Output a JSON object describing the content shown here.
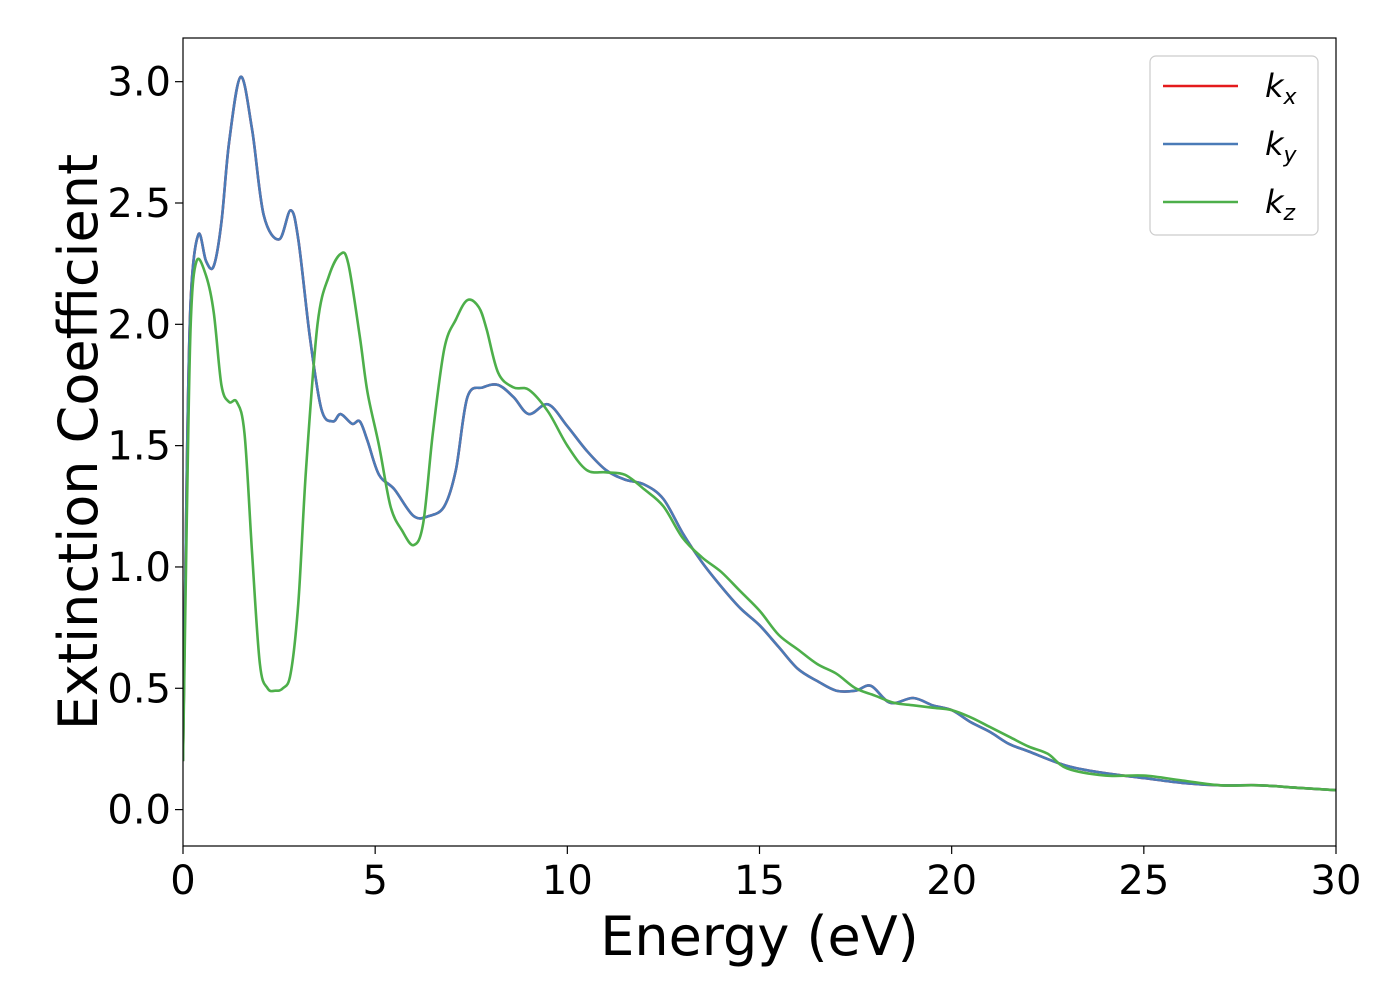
{
  "chart_data": {
    "type": "line",
    "title": "",
    "xlabel": "Energy (eV)",
    "ylabel": "Extinction Coefficient",
    "xlim": [
      0,
      30
    ],
    "ylim": [
      -0.15,
      3.18
    ],
    "xticks": [
      0,
      5,
      10,
      15,
      20,
      25,
      30
    ],
    "xtick_labels": [
      "0",
      "5",
      "10",
      "15",
      "20",
      "25",
      "30"
    ],
    "yticks": [
      0.0,
      0.5,
      1.0,
      1.5,
      2.0,
      2.5,
      3.0
    ],
    "ytick_labels": [
      "0.0",
      "0.5",
      "1.0",
      "1.5",
      "2.0",
      "2.5",
      "3.0"
    ],
    "grid": false,
    "legend_position": "top-right",
    "series": [
      {
        "name": "k",
        "subscript": "x",
        "color": "#e41a1c",
        "x": [
          0,
          0.1,
          0.2,
          0.4,
          0.6,
          0.8,
          1.0,
          1.2,
          1.5,
          1.8,
          2.1,
          2.5,
          2.8,
          3.0,
          3.3,
          3.6,
          3.9,
          4.1,
          4.4,
          4.6,
          4.8,
          5.1,
          5.5,
          6.0,
          6.4,
          6.8,
          7.1,
          7.4,
          7.8,
          8.2,
          8.6,
          9.0,
          9.5,
          10.0,
          10.5,
          11.0,
          11.5,
          12.0,
          12.5,
          13.0,
          13.5,
          14.0,
          14.5,
          15.0,
          15.5,
          16.0,
          16.5,
          17.0,
          17.5,
          17.9,
          18.4,
          19.0,
          19.5,
          20.0,
          20.5,
          21.0,
          21.5,
          22.0,
          23.0,
          24.0,
          25.0,
          26.0,
          27.0,
          28.0,
          29.0,
          30.0
        ],
        "values": [
          0.2,
          1.4,
          2.1,
          2.37,
          2.26,
          2.24,
          2.42,
          2.75,
          3.02,
          2.8,
          2.45,
          2.35,
          2.47,
          2.35,
          1.95,
          1.65,
          1.6,
          1.63,
          1.59,
          1.6,
          1.52,
          1.38,
          1.32,
          1.21,
          1.21,
          1.25,
          1.4,
          1.7,
          1.74,
          1.75,
          1.7,
          1.63,
          1.67,
          1.58,
          1.48,
          1.4,
          1.36,
          1.34,
          1.28,
          1.14,
          1.02,
          0.92,
          0.83,
          0.76,
          0.67,
          0.58,
          0.53,
          0.49,
          0.49,
          0.51,
          0.44,
          0.46,
          0.43,
          0.41,
          0.36,
          0.32,
          0.27,
          0.24,
          0.18,
          0.15,
          0.13,
          0.11,
          0.1,
          0.1,
          0.09,
          0.08
        ]
      },
      {
        "name": "k",
        "subscript": "y",
        "color": "#4a7bb7",
        "x": [
          0,
          0.1,
          0.2,
          0.4,
          0.6,
          0.8,
          1.0,
          1.2,
          1.5,
          1.8,
          2.1,
          2.5,
          2.8,
          3.0,
          3.3,
          3.6,
          3.9,
          4.1,
          4.4,
          4.6,
          4.8,
          5.1,
          5.5,
          6.0,
          6.4,
          6.8,
          7.1,
          7.4,
          7.8,
          8.2,
          8.6,
          9.0,
          9.5,
          10.0,
          10.5,
          11.0,
          11.5,
          12.0,
          12.5,
          13.0,
          13.5,
          14.0,
          14.5,
          15.0,
          15.5,
          16.0,
          16.5,
          17.0,
          17.5,
          17.9,
          18.4,
          19.0,
          19.5,
          20.0,
          20.5,
          21.0,
          21.5,
          22.0,
          23.0,
          24.0,
          25.0,
          26.0,
          27.0,
          28.0,
          29.0,
          30.0
        ],
        "values": [
          0.2,
          1.4,
          2.1,
          2.37,
          2.26,
          2.24,
          2.42,
          2.75,
          3.02,
          2.8,
          2.45,
          2.35,
          2.47,
          2.35,
          1.95,
          1.65,
          1.6,
          1.63,
          1.59,
          1.6,
          1.52,
          1.38,
          1.32,
          1.21,
          1.21,
          1.25,
          1.4,
          1.7,
          1.74,
          1.75,
          1.7,
          1.63,
          1.67,
          1.58,
          1.48,
          1.4,
          1.36,
          1.34,
          1.28,
          1.14,
          1.02,
          0.92,
          0.83,
          0.76,
          0.67,
          0.58,
          0.53,
          0.49,
          0.49,
          0.51,
          0.44,
          0.46,
          0.43,
          0.41,
          0.36,
          0.32,
          0.27,
          0.24,
          0.18,
          0.15,
          0.13,
          0.11,
          0.1,
          0.1,
          0.09,
          0.08
        ]
      },
      {
        "name": "k",
        "subscript": "z",
        "color": "#4daf4a",
        "x": [
          0,
          0.1,
          0.2,
          0.35,
          0.6,
          0.8,
          1.0,
          1.2,
          1.4,
          1.6,
          1.8,
          2.0,
          2.2,
          2.4,
          2.6,
          2.8,
          3.0,
          3.2,
          3.5,
          3.8,
          4.1,
          4.3,
          4.6,
          4.8,
          5.1,
          5.4,
          5.7,
          6.0,
          6.25,
          6.5,
          6.8,
          7.1,
          7.4,
          7.7,
          7.9,
          8.2,
          8.6,
          9.0,
          9.5,
          10.0,
          10.5,
          11.0,
          11.5,
          12.0,
          12.5,
          13.0,
          13.5,
          14.0,
          14.5,
          15.0,
          15.5,
          16.0,
          16.5,
          17.0,
          17.5,
          18.0,
          18.5,
          19.0,
          19.5,
          20.0,
          20.5,
          21.0,
          21.5,
          22.0,
          22.5,
          23.0,
          24.0,
          25.0,
          26.0,
          27.0,
          28.0,
          29.0,
          30.0
        ],
        "values": [
          0.2,
          1.2,
          2.0,
          2.26,
          2.2,
          2.05,
          1.75,
          1.68,
          1.68,
          1.55,
          1.05,
          0.6,
          0.5,
          0.49,
          0.5,
          0.56,
          0.85,
          1.4,
          2.0,
          2.2,
          2.29,
          2.25,
          1.95,
          1.72,
          1.5,
          1.25,
          1.15,
          1.09,
          1.18,
          1.55,
          1.9,
          2.02,
          2.1,
          2.07,
          1.98,
          1.8,
          1.74,
          1.73,
          1.64,
          1.5,
          1.4,
          1.39,
          1.38,
          1.32,
          1.25,
          1.12,
          1.04,
          0.98,
          0.9,
          0.82,
          0.72,
          0.66,
          0.6,
          0.56,
          0.5,
          0.47,
          0.44,
          0.43,
          0.42,
          0.41,
          0.38,
          0.34,
          0.3,
          0.26,
          0.23,
          0.17,
          0.14,
          0.14,
          0.12,
          0.1,
          0.1,
          0.09,
          0.08
        ]
      }
    ]
  }
}
